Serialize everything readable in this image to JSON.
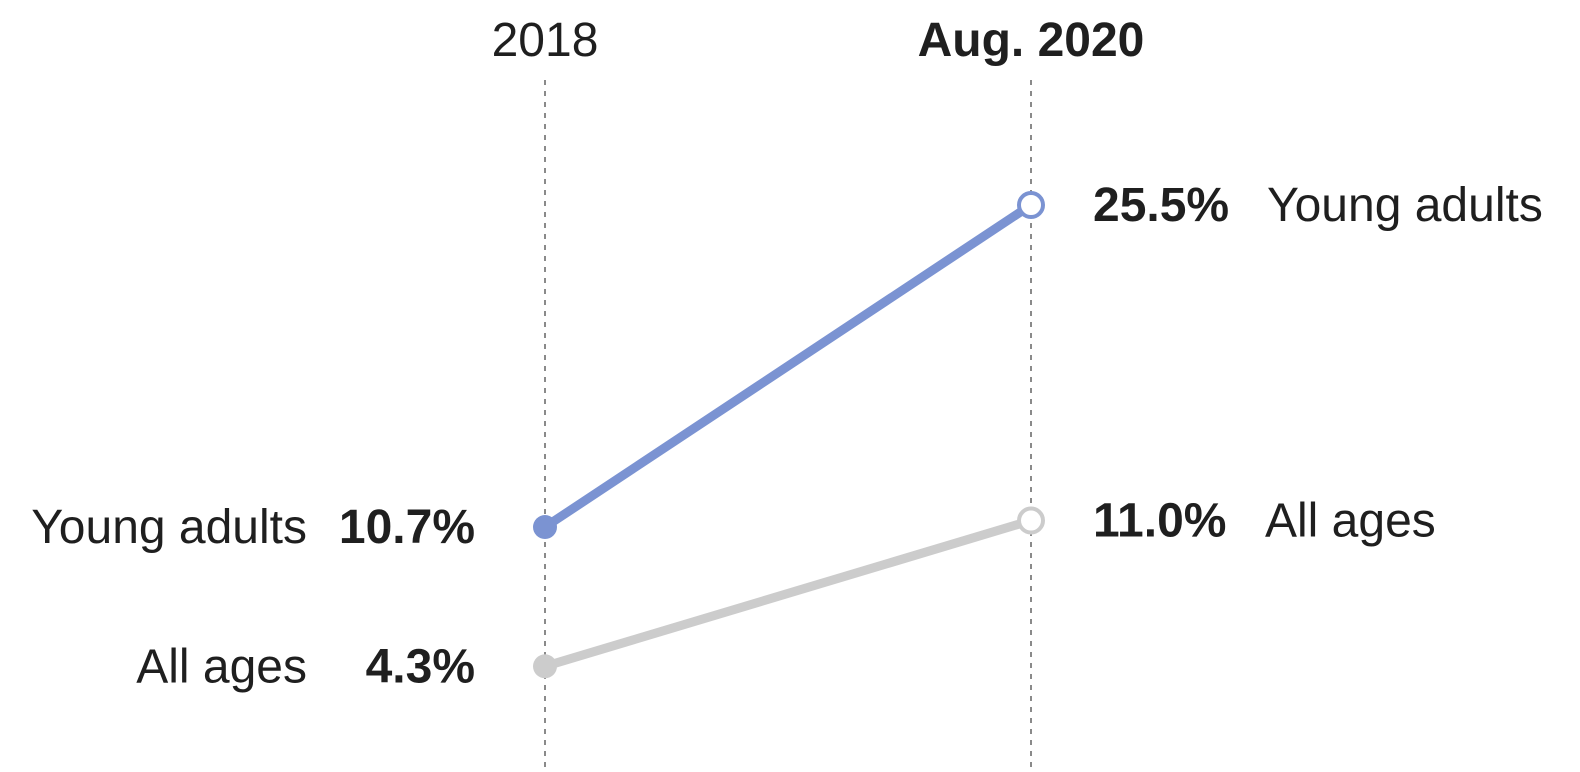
{
  "chart_data": {
    "type": "line",
    "x": [
      "2018",
      "Aug. 2020"
    ],
    "x_emphasis": [
      false,
      true
    ],
    "series": [
      {
        "name": "Young adults",
        "values": [
          10.7,
          25.5
        ],
        "value_labels": [
          "10.7%",
          "25.5%"
        ],
        "color": "#7b93d2",
        "start_marker": "filled",
        "end_marker": "hollow"
      },
      {
        "name": "All ages",
        "values": [
          4.3,
          11.0
        ],
        "value_labels": [
          "4.3%",
          "11.0%"
        ],
        "color": "#cccccc",
        "start_marker": "filled",
        "end_marker": "hollow"
      }
    ],
    "unit": "%",
    "grid": "vertical dotted lines at each period",
    "legend": "direct labels at line ends",
    "ylim": [
      0,
      30
    ]
  }
}
